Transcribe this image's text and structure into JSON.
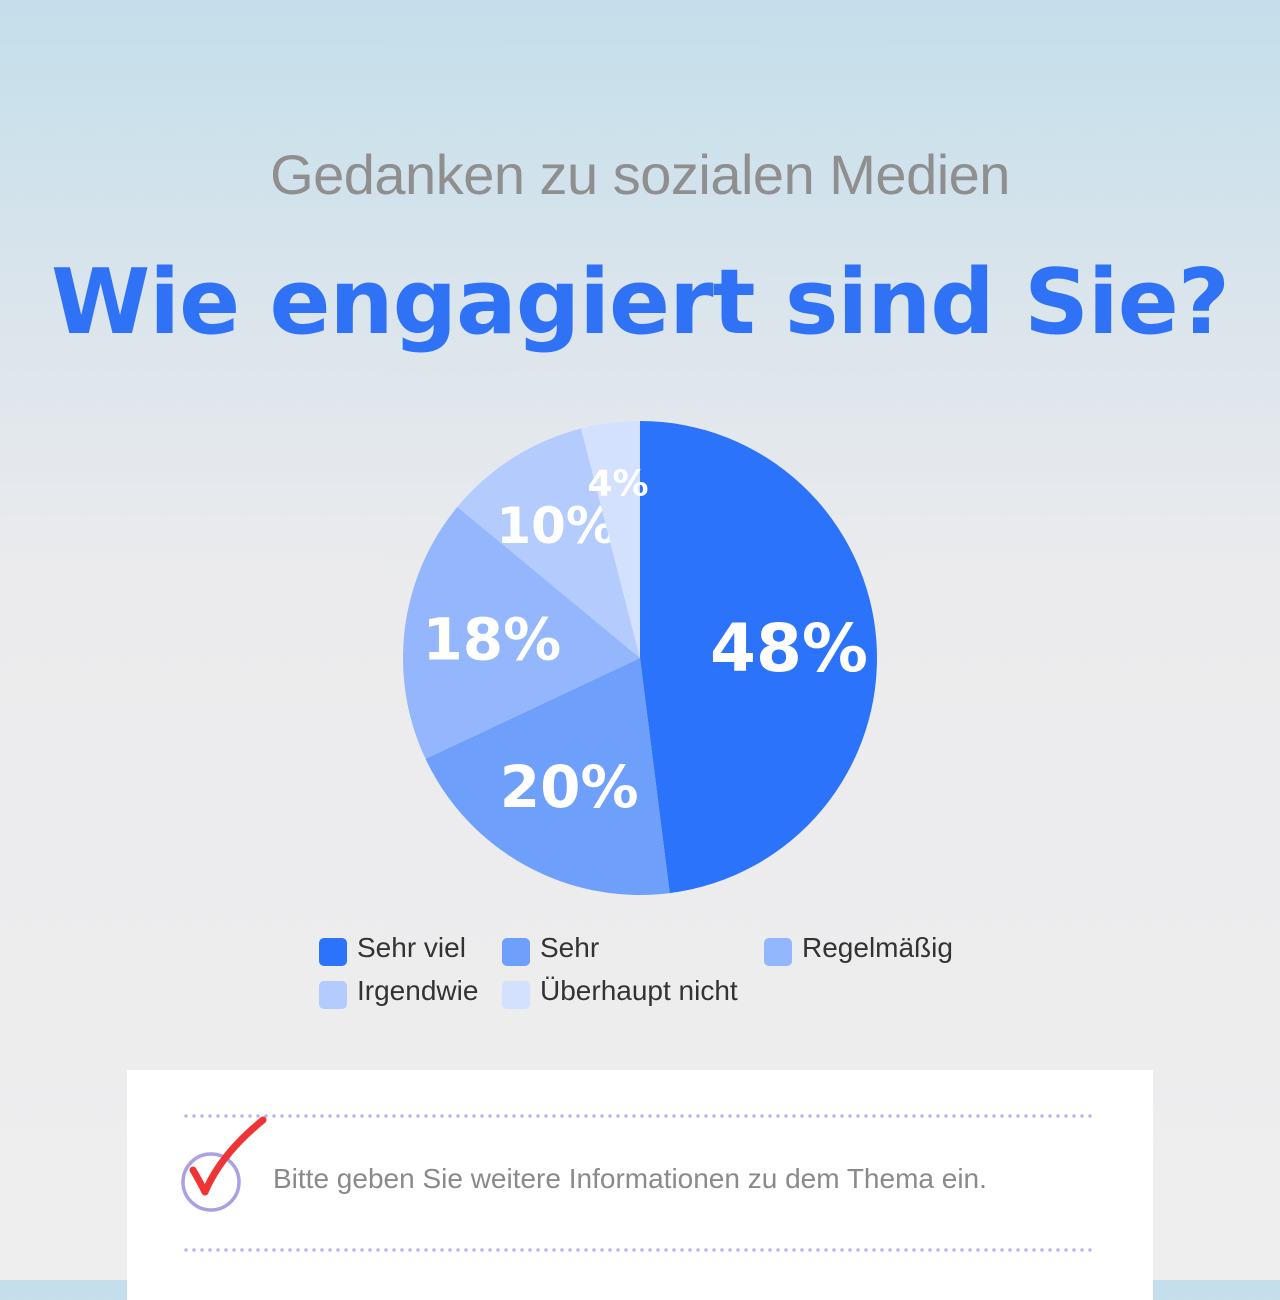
{
  "header": {
    "subtitle": "Gedanken zu sozialen Medien",
    "title": "Wie engagiert sind Sie?"
  },
  "chart_data": {
    "type": "pie",
    "categories": [
      "Sehr viel",
      "Sehr",
      "Regelmäßig",
      "Irgendwie",
      "Überhaupt nicht"
    ],
    "values": [
      48,
      20,
      18,
      10,
      4
    ],
    "labels": [
      "48%",
      "20%",
      "18%",
      "10%",
      "4%"
    ],
    "colors": [
      "#2c73fb",
      "#6d9ffb",
      "#93b6fc",
      "#b3cbfd",
      "#d3e1fe"
    ],
    "legend": "bottom"
  },
  "legend_items": [
    {
      "label": "Sehr viel",
      "color": "#2c73fb"
    },
    {
      "label": "Sehr",
      "color": "#6d9ffb"
    },
    {
      "label": "Regelmäßig",
      "color": "#93b6fc"
    },
    {
      "label": "Irgendwie",
      "color": "#b3cbfd"
    },
    {
      "label": "Überhaupt nicht",
      "color": "#d3e1fe"
    }
  ],
  "note": {
    "text": "Bitte geben Sie weitere Informationen zu dem Thema ein.",
    "icon": "checkmark-icon"
  }
}
